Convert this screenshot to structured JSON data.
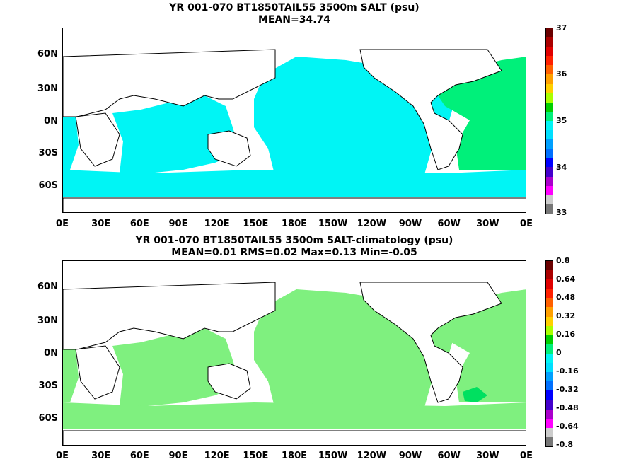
{
  "panel1": {
    "title_line1": "YR 001-070 BT1850TAIL55 3500m SALT (psu)",
    "title_line2": "MEAN=34.74",
    "ocean_color": "#00f5f5",
    "atlantic_color": "#00f07a",
    "colorbar_labels": [
      "37",
      "36",
      "35",
      "34",
      "33"
    ]
  },
  "panel2": {
    "title_line1": "YR 001-070 BT1850TAIL55 3500m SALT-climatology (psu)",
    "title_line2": "MEAN=0.01   RMS=0.02   Max=0.13   Min=-0.05",
    "ocean_color": "#7ff07f",
    "patch_color": "#00e060",
    "colorbar_labels": [
      "0.8",
      "0.64",
      "0.48",
      "0.32",
      "0.16",
      "0",
      "-0.16",
      "-0.32",
      "-0.48",
      "-0.64",
      "-0.8"
    ]
  },
  "axes": {
    "lat_labels": [
      "60N",
      "30N",
      "0N",
      "30S",
      "60S"
    ],
    "lon_labels": [
      "0E",
      "30E",
      "60E",
      "90E",
      "120E",
      "150E",
      "180E",
      "150W",
      "120W",
      "90W",
      "60W",
      "30W",
      "0E"
    ]
  },
  "colorbar_colors": [
    "#777777",
    "#cccccc",
    "#ff00ff",
    "#aa00cc",
    "#4400cc",
    "#0000ff",
    "#0070ff",
    "#00a0ff",
    "#00dfff",
    "#00f5f5",
    "#00f07a",
    "#00d000",
    "#aaff00",
    "#ffd000",
    "#ffa000",
    "#ff6000",
    "#ff2000",
    "#e00000",
    "#aa0000",
    "#6a0000"
  ]
}
